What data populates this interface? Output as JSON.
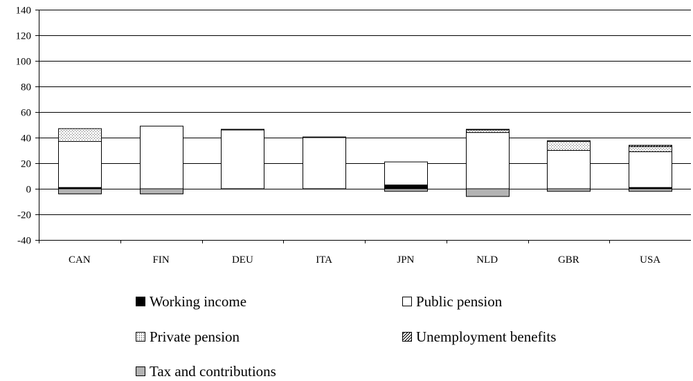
{
  "chart_data": {
    "type": "bar",
    "stacked": true,
    "categories": [
      "CAN",
      "FIN",
      "DEU",
      "ITA",
      "JPN",
      "NLD",
      "GBR",
      "USA"
    ],
    "ylim": [
      -40,
      140
    ],
    "yticks": [
      140,
      120,
      100,
      80,
      60,
      40,
      20,
      0,
      -20,
      -40
    ],
    "ytick_labels": [
      "140",
      "120",
      "100",
      "80",
      "60",
      "40",
      "20",
      "0",
      "-20",
      "-40"
    ],
    "grid": true,
    "legend_position": "bottom",
    "series": [
      {
        "name": "Working income",
        "values": [
          1,
          0,
          0,
          0,
          3,
          0,
          0,
          1
        ],
        "color": "#000000",
        "pattern": "solid"
      },
      {
        "name": "Public pension",
        "values": [
          36,
          49,
          46,
          40,
          18,
          44,
          30,
          28
        ],
        "color": "#ffffff",
        "pattern": "solid"
      },
      {
        "name": "Private pension",
        "values": [
          10,
          0,
          0,
          0,
          0,
          2,
          7,
          4
        ],
        "color": "#ffffff",
        "pattern": "dots"
      },
      {
        "name": "Unemployment benefits",
        "values": [
          0,
          0,
          0.5,
          0.5,
          0,
          0.5,
          0.5,
          1
        ],
        "color": "#ffffff",
        "pattern": "hatch"
      },
      {
        "name": "Tax and contributions",
        "values": [
          -4,
          -4,
          0,
          0,
          -2,
          -6,
          -2,
          -2
        ],
        "color": "#b3b3b3",
        "pattern": "solid"
      }
    ]
  }
}
